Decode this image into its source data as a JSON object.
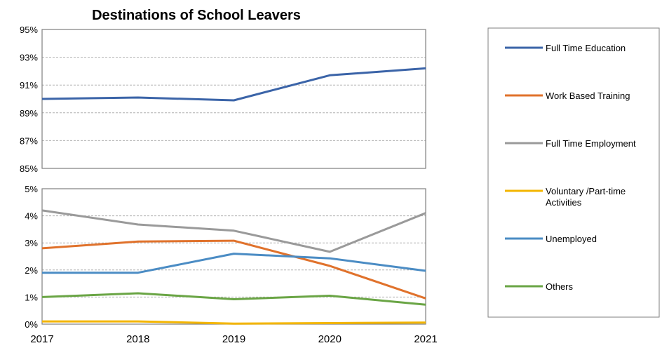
{
  "chart_data": {
    "type": "line",
    "title": "Destinations of School Leavers",
    "x": [
      "2017",
      "2018",
      "2019",
      "2020",
      "2021"
    ],
    "xlabel": "",
    "ylabel": "",
    "panels": [
      {
        "name": "upper",
        "ylim": [
          85,
          95
        ],
        "yticks": [
          "85%",
          "87%",
          "89%",
          "91%",
          "93%",
          "95%"
        ],
        "series_indices": [
          0
        ]
      },
      {
        "name": "lower",
        "ylim": [
          0,
          5
        ],
        "yticks": [
          "0%",
          "1%",
          "2%",
          "3%",
          "4%",
          "5%"
        ],
        "series_indices": [
          1,
          2,
          3,
          4,
          5
        ]
      }
    ],
    "series": [
      {
        "name": "Full Time Education",
        "color": "#3b64a8",
        "values": [
          90.0,
          90.1,
          89.9,
          91.7,
          92.2
        ]
      },
      {
        "name": "Work Based Training",
        "color": "#e0722c",
        "values": [
          2.8,
          3.05,
          3.08,
          2.15,
          0.95
        ]
      },
      {
        "name": "Full Time Employment",
        "color": "#9a9a9a",
        "values": [
          4.2,
          3.68,
          3.45,
          2.67,
          4.1
        ]
      },
      {
        "name": "Voluntary /Part-time Activities",
        "color": "#f3b500",
        "values": [
          0.1,
          0.1,
          0.02,
          0.04,
          0.06
        ]
      },
      {
        "name": "Unemployed",
        "color": "#4b8cc4",
        "values": [
          1.9,
          1.9,
          2.6,
          2.43,
          1.97
        ]
      },
      {
        "name": "Others",
        "color": "#6aa545",
        "values": [
          1.0,
          1.14,
          0.92,
          1.05,
          0.72
        ]
      }
    ],
    "grid": true,
    "legend_position": "right",
    "legend_lines": [
      [
        "Full Time Education"
      ],
      [
        "Work Based Training"
      ],
      [
        "Full Time Employment"
      ],
      [
        "Voluntary /Part-time",
        "Activities"
      ],
      [
        "Unemployed"
      ],
      [
        "Others"
      ]
    ]
  }
}
